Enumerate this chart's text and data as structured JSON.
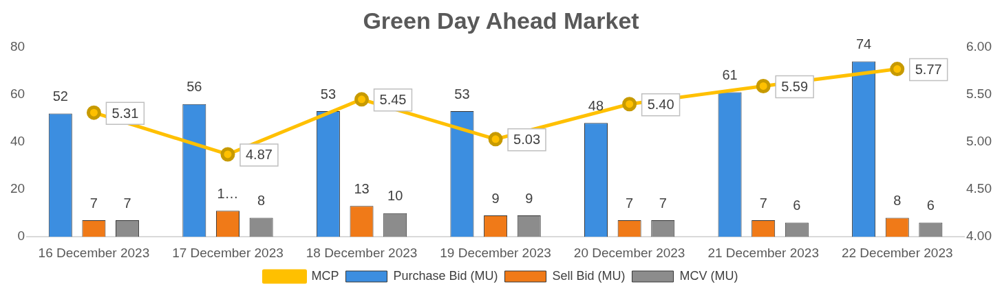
{
  "chart_data": {
    "type": "bar",
    "title": "Green Day Ahead Market",
    "categories": [
      "16 December 2023",
      "17 December 2023",
      "18 December 2023",
      "19 December 2023",
      "20 December 2023",
      "21 December 2023",
      "22 December 2023"
    ],
    "series": [
      {
        "name": "Purchase Bid (MU)",
        "color": "#3c8ee0",
        "values": [
          52,
          56,
          53,
          53,
          48,
          61,
          74
        ],
        "value_labels": [
          "52",
          "56",
          "53",
          "53",
          "48",
          "61",
          "74"
        ]
      },
      {
        "name": "Sell Bid (MU)",
        "color": "#f07a18",
        "values": [
          7,
          11,
          13,
          9,
          7,
          7,
          8
        ],
        "value_labels": [
          "7",
          "1…",
          "13",
          "9",
          "7",
          "7",
          "8"
        ]
      },
      {
        "name": "MCV (MU)",
        "color": "#8c8c8c",
        "values": [
          7,
          8,
          10,
          9,
          7,
          6,
          6
        ],
        "value_labels": [
          "7",
          "8",
          "10",
          "9",
          "7",
          "6",
          "6"
        ]
      },
      {
        "name": "MCP",
        "type": "line",
        "axis": "y2",
        "color": "#ffc000",
        "marker": "circle",
        "values": [
          5.31,
          4.87,
          5.45,
          5.03,
          5.4,
          5.59,
          5.77
        ],
        "value_labels": [
          "5.31",
          "4.87",
          "5.45",
          "5.03",
          "5.40",
          "5.59",
          "5.77"
        ]
      }
    ],
    "ylim": [
      0,
      80
    ],
    "yticks": [
      0,
      20,
      40,
      60,
      80
    ],
    "y2lim": [
      4,
      6
    ],
    "y2ticks": [
      {
        "value": 4,
        "label": "4.00"
      },
      {
        "value": 4.5,
        "label": "4.50"
      },
      {
        "value": 5,
        "label": "5.00"
      },
      {
        "value": 5.5,
        "label": "5.50"
      },
      {
        "value": 6,
        "label": "6.00"
      }
    ],
    "grid": false,
    "legend": "bottom"
  }
}
